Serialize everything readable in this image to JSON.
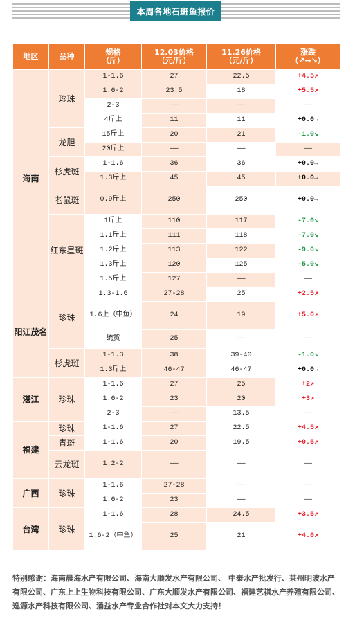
{
  "title": "本周各地石斑鱼报价",
  "columns": {
    "region": "地区",
    "variety": "品种",
    "spec": [
      "规格",
      "（斤）"
    ],
    "price_a": [
      "12.03价格",
      "（元/斤）"
    ],
    "price_b": [
      "11.26价格",
      "（元/斤）"
    ],
    "change": [
      "涨跌",
      "（↗→↘）"
    ]
  },
  "rows": [
    {
      "region": "海南",
      "variety": "珍珠",
      "spec": "1-1.6",
      "p1": "27",
      "p2": "22.5",
      "chg": "+4.5↗",
      "dir": "up"
    },
    {
      "spec": "1.6-2",
      "p1": "23.5",
      "p2": "18",
      "chg": "+5.5↗",
      "dir": "up"
    },
    {
      "spec": "2-3",
      "p1": "——",
      "p2": "——",
      "chg": "——",
      "dir": "none"
    },
    {
      "spec": "4斤上",
      "p1": "11",
      "p2": "11",
      "chg": "+0.0→",
      "dir": "flat"
    },
    {
      "variety": "龙胆",
      "spec": "15斤上",
      "p1": "20",
      "p2": "21",
      "chg": "-1.0↘",
      "dir": "down"
    },
    {
      "spec": "20斤上",
      "p1": "——",
      "p2": "——",
      "chg": "——",
      "dir": "none"
    },
    {
      "variety": "杉虎斑",
      "spec": "1-1.6",
      "p1": "36",
      "p2": "36",
      "chg": "+0.0→",
      "dir": "flat"
    },
    {
      "spec": "1.3斤上",
      "p1": "45",
      "p2": "45",
      "chg": "+0.0→",
      "dir": "flat"
    },
    {
      "variety": "老鼠斑",
      "spec": "0.9斤上",
      "p1": "250",
      "p2": "250",
      "chg": "+0.0→",
      "dir": "flat"
    },
    {
      "variety": "红东星斑",
      "spec": "1斤上",
      "p1": "110",
      "p2": "117",
      "chg": "-7.0↘",
      "dir": "down"
    },
    {
      "spec": "1.1斤上",
      "p1": "111",
      "p2": "118",
      "chg": "-7.0↘",
      "dir": "down"
    },
    {
      "spec": "1.2斤上",
      "p1": "113",
      "p2": "122",
      "chg": "-9.0↘",
      "dir": "down"
    },
    {
      "spec": "1.3斤上",
      "p1": "120",
      "p2": "125",
      "chg": "-5.0↘",
      "dir": "down"
    },
    {
      "spec": "1.5斤上",
      "p1": "127",
      "p2": "——",
      "chg": "——",
      "dir": "none"
    },
    {
      "region": "阳江茂名",
      "variety": "珍珠",
      "spec": "1.3-1.6",
      "p1": "27-28",
      "p2": "25",
      "chg": "+2.5↗",
      "dir": "up"
    },
    {
      "spec": "1.6上（中鱼）",
      "p1": "24",
      "p2": "19",
      "chg": "+5.0↗",
      "dir": "up"
    },
    {
      "spec": "统货",
      "p1": "25",
      "p2": "——",
      "chg": "——",
      "dir": "none"
    },
    {
      "variety": "杉虎斑",
      "spec": "1-1.3",
      "p1": "38",
      "p2": "39-40",
      "chg": "-1.0↘",
      "dir": "down"
    },
    {
      "spec": "1.3斤上",
      "p1": "46-47",
      "p2": "46-47",
      "chg": "+0.0→",
      "dir": "flat"
    },
    {
      "region": "湛江",
      "variety": "珍珠",
      "spec": "1-1.6",
      "p1": "27",
      "p2": "25",
      "chg": "+2↗",
      "dir": "up"
    },
    {
      "spec": "1.6-2",
      "p1": "23",
      "p2": "20",
      "chg": "+3↗",
      "dir": "up"
    },
    {
      "spec": "2-3",
      "p1": "——",
      "p2": "13.5",
      "chg": "——",
      "dir": "none"
    },
    {
      "region": "福建",
      "variety": "珍珠",
      "spec": "1-1.6",
      "p1": "27",
      "p2": "22.5",
      "chg": "+4.5↗",
      "dir": "up"
    },
    {
      "variety": "青斑",
      "spec": "1-1.6",
      "p1": "20",
      "p2": "19.5",
      "chg": "+0.5↗",
      "dir": "up"
    },
    {
      "variety": "云龙斑",
      "spec": "1.2-2",
      "p1": "——",
      "p2": "——",
      "chg": "——",
      "dir": "none"
    },
    {
      "region": "广西",
      "variety": "珍珠",
      "spec": "1-1.6",
      "p1": "27-28",
      "p2": "——",
      "chg": "——",
      "dir": "none"
    },
    {
      "spec": "1.6-2",
      "p1": "23",
      "p2": "——",
      "chg": "——",
      "dir": "none"
    },
    {
      "region": "台湾",
      "variety": "珍珠",
      "spec": "1-1.6",
      "p1": "28",
      "p2": "24.5",
      "chg": "+3.5↗",
      "dir": "up"
    },
    {
      "spec": "1.6-2（中鱼）",
      "p1": "25",
      "p2": "21",
      "chg": "+4.0↗",
      "dir": "up"
    }
  ],
  "thanks": "特别感谢：海南晨海水产有限公司、海南大顺发水产有限公司、 中泰水产批发行、莱州明波水产有限公司、广东上上生物科技有限公司、广东大顺发水产有限公司、福建艺祺水产养殖有限公司、逸源水产科技有限公司、涌益水产专业合作社对本文大力支持！"
}
